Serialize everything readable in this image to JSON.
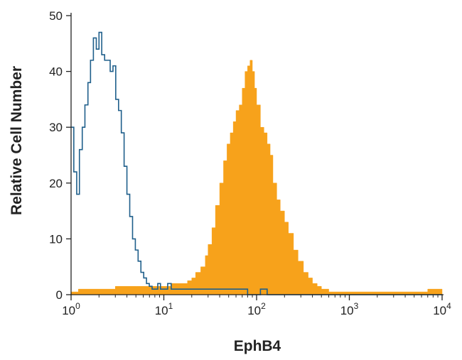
{
  "chart_data": {
    "type": "histogram",
    "xlabel": "EphB4",
    "ylabel": "Relative Cell Number",
    "xscale": "log",
    "xlim": [
      1,
      10000
    ],
    "ylim": [
      0,
      50
    ],
    "x_ticks": [
      {
        "base": "10",
        "exp": "0",
        "value": 1
      },
      {
        "base": "10",
        "exp": "1",
        "value": 10
      },
      {
        "base": "10",
        "exp": "2",
        "value": 100
      },
      {
        "base": "10",
        "exp": "3",
        "value": 1000
      },
      {
        "base": "10",
        "exp": "4",
        "value": 10000
      }
    ],
    "y_ticks": [
      "0",
      "10",
      "20",
      "30",
      "40",
      "50"
    ],
    "grid": false,
    "legend": "none",
    "series": [
      {
        "style": "outline",
        "color": "#1f5f8b",
        "x": [
          1.0,
          1.07,
          1.15,
          1.23,
          1.32,
          1.41,
          1.52,
          1.62,
          1.74,
          1.87,
          2.0,
          2.14,
          2.3,
          2.46,
          2.64,
          2.83,
          3.03,
          3.25,
          3.48,
          3.73,
          4.0,
          4.29,
          4.6,
          4.93,
          5.28,
          5.66,
          6.07,
          6.5,
          6.97,
          7.47,
          8.0,
          8.6,
          9.2,
          10.0,
          11.0,
          12.0,
          13.0,
          15.0,
          20.0,
          25.0,
          30.0,
          40.0,
          50.0,
          60.0,
          70.0,
          80.0,
          90.0,
          100.0,
          110.0,
          130.0,
          200.0,
          500.0,
          1000.0,
          3000.0,
          10000.0
        ],
        "y": [
          30,
          22,
          18,
          26,
          30,
          34,
          38,
          42,
          46,
          44,
          47,
          43,
          42,
          42,
          40,
          41,
          35,
          33,
          29,
          23,
          18,
          14,
          10,
          8,
          6,
          4,
          3,
          2,
          1.5,
          1,
          1,
          2,
          1,
          1,
          2,
          1,
          1,
          1,
          1,
          1,
          1,
          1,
          1,
          1,
          1,
          0,
          0,
          0,
          1,
          0,
          0,
          0,
          0,
          0,
          0
        ]
      },
      {
        "style": "filled",
        "color": "#f7a21b",
        "x": [
          1.0,
          1.2,
          1.5,
          2.0,
          3.0,
          5.0,
          8.0,
          12.0,
          15.0,
          18.0,
          20.0,
          22.0,
          25.0,
          28.0,
          30.0,
          33.0,
          36.0,
          40.0,
          44.0,
          48.0,
          52.0,
          56.0,
          60.0,
          65.0,
          70.0,
          75.0,
          80.0,
          85.0,
          90.0,
          95.0,
          100.0,
          110.0,
          120.0,
          130.0,
          140.0,
          150.0,
          165.0,
          180.0,
          200.0,
          220.0,
          250.0,
          280.0,
          320.0,
          360.0,
          400.0,
          450.0,
          500.0,
          600.0,
          800.0,
          1200.0,
          2000.0,
          4000.0,
          7000.0,
          10000.0
        ],
        "y": [
          0.5,
          1,
          1,
          1,
          1.5,
          1.5,
          1.5,
          2,
          2,
          2.5,
          3,
          4,
          5,
          7,
          9,
          12,
          16,
          20,
          24,
          27,
          29,
          31,
          33,
          34,
          37,
          40,
          41,
          42,
          40,
          37,
          34,
          30,
          29,
          27,
          25,
          20,
          17,
          15,
          13,
          11,
          8,
          6,
          4,
          3,
          2,
          1.5,
          1,
          0.5,
          0.5,
          0.5,
          0.5,
          0.5,
          1,
          0
        ]
      }
    ]
  }
}
